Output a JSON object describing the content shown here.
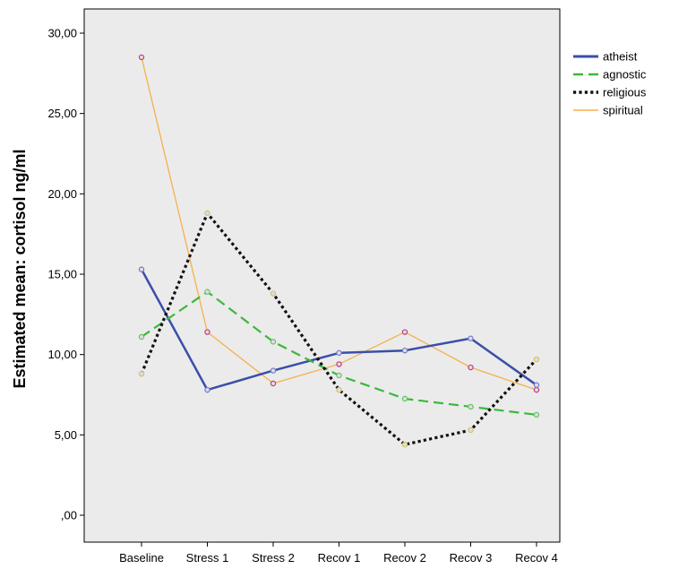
{
  "chart_data": {
    "type": "line",
    "title": "",
    "xlabel": "",
    "ylabel": "Estimated mean: cortisol ng/ml",
    "categories": [
      "Baseline",
      "Stress 1",
      "Stress 2",
      "Recov 1",
      "Recov 2",
      "Recov 3",
      "Recov 4"
    ],
    "ylim": [
      0,
      32
    ],
    "yticks": [
      0,
      5,
      10,
      15,
      20,
      25,
      30
    ],
    "ytick_labels": [
      ",00",
      "5,00",
      "10,00",
      "15,00",
      "20,00",
      "25,00",
      "30,00"
    ],
    "grid": false,
    "legend_position": "right",
    "series": [
      {
        "name": "atheist",
        "color": "#3a4fa8",
        "dash": "solid",
        "width": 2.5,
        "marker": "#6b7fc8",
        "values": [
          15.3,
          7.8,
          9.0,
          10.1,
          10.25,
          11.0,
          8.1
        ]
      },
      {
        "name": "agnostic",
        "color": "#3cb83c",
        "dash": "dashed",
        "width": 2.2,
        "marker": "#5cc85c",
        "values": [
          11.1,
          13.9,
          10.8,
          8.7,
          7.25,
          6.75,
          6.25
        ]
      },
      {
        "name": "religious",
        "color": "#111111",
        "dash": "dotted",
        "width": 3.2,
        "marker": "#c8c860",
        "values": [
          8.8,
          18.8,
          13.8,
          7.8,
          4.4,
          5.3,
          9.7
        ]
      },
      {
        "name": "spiritual",
        "color": "#f5b14a",
        "dash": "solid",
        "width": 1.3,
        "marker": "#b8407c",
        "values": [
          28.5,
          11.4,
          8.2,
          9.4,
          11.4,
          9.2,
          7.8
        ]
      }
    ]
  }
}
